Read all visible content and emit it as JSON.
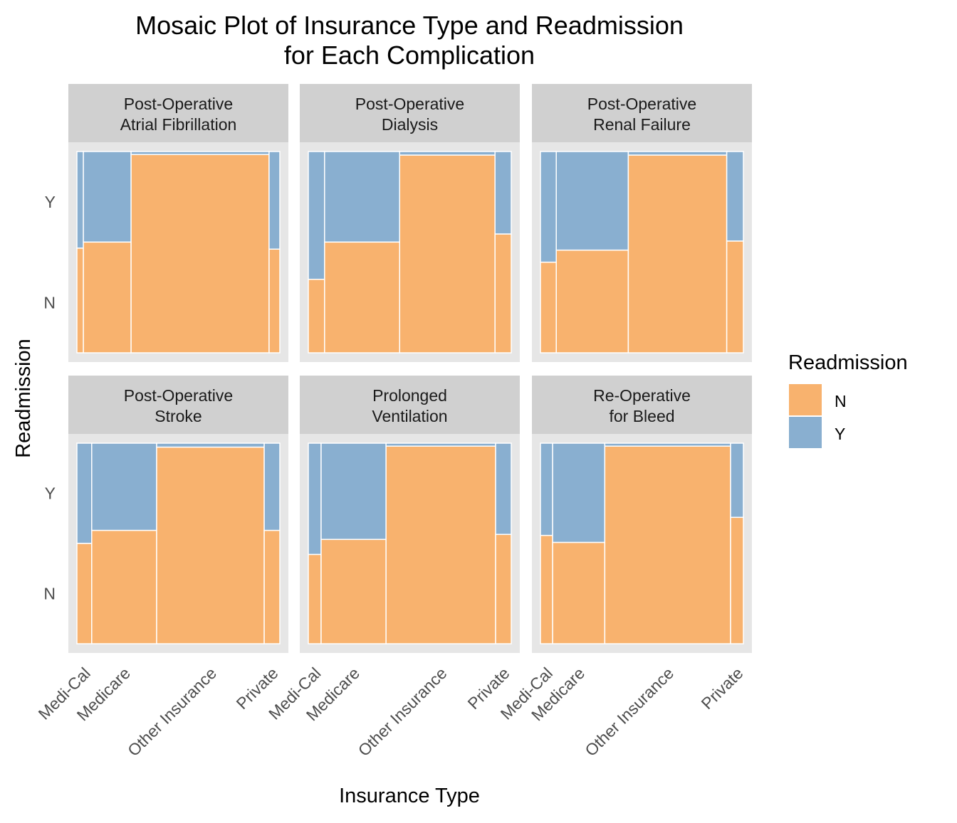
{
  "chart_data": {
    "type": "mosaic",
    "title_lines": [
      "Mosaic Plot of Insurance Type and Readmission",
      "for Each Complication"
    ],
    "xlabel": "Insurance Type",
    "ylabel": "Readmission",
    "y_tick_labels": [
      "Y",
      "N"
    ],
    "x_categories": [
      "Medi-Cal",
      "Medicare",
      "Other Insurance",
      "Private"
    ],
    "legend": {
      "title": "Readmission",
      "position": "right",
      "entries": [
        {
          "label": "N",
          "color": "#F8B26E"
        },
        {
          "label": "Y",
          "color": "#89AFD0"
        }
      ]
    },
    "colors": {
      "N": "#F8B26E",
      "Y": "#89AFD0",
      "panel_bg": "#E6E6E6",
      "strip_bg": "#D0D0D0"
    },
    "panels": [
      {
        "title_lines": [
          "Post-Operative",
          "Atrial Fibrillation"
        ],
        "widths": [
          0.032,
          0.235,
          0.68,
          0.053
        ],
        "n_fraction": [
          0.52,
          0.55,
          0.985,
          0.515
        ]
      },
      {
        "title_lines": [
          "Post-Operative",
          "Dialysis"
        ],
        "widths": [
          0.08,
          0.37,
          0.47,
          0.08
        ],
        "n_fraction": [
          0.365,
          0.55,
          0.982,
          0.59
        ]
      },
      {
        "title_lines": [
          "Post-Operative",
          "Renal Failure"
        ],
        "widths": [
          0.078,
          0.355,
          0.485,
          0.082
        ],
        "n_fraction": [
          0.45,
          0.51,
          0.982,
          0.555
        ]
      },
      {
        "title_lines": [
          "Post-Operative",
          "Stroke"
        ],
        "widths": [
          0.073,
          0.32,
          0.53,
          0.077
        ],
        "n_fraction": [
          0.5,
          0.565,
          0.98,
          0.565
        ]
      },
      {
        "title_lines": [
          "Prolonged",
          "Ventilation"
        ],
        "widths": [
          0.063,
          0.32,
          0.54,
          0.077
        ],
        "n_fraction": [
          0.445,
          0.52,
          0.985,
          0.545
        ]
      },
      {
        "title_lines": [
          "Re-Operative",
          "for Bleed"
        ],
        "widths": [
          0.06,
          0.257,
          0.62,
          0.063
        ],
        "n_fraction": [
          0.54,
          0.505,
          0.985,
          0.63
        ]
      }
    ]
  }
}
